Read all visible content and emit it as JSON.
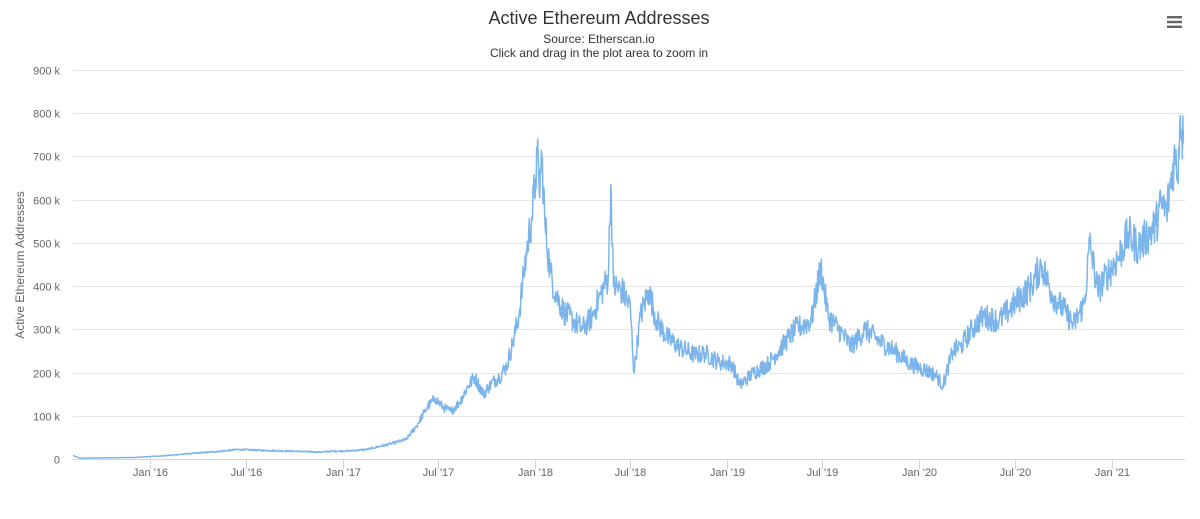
{
  "chart_data": {
    "type": "line",
    "title": "Active Ethereum Addresses",
    "subtitles": [
      "Source: Etherscan.io",
      "Click and drag in the plot area to zoom in"
    ],
    "ylabel": "Active Ethereum Addresses",
    "xlabel": "",
    "ylim": [
      0,
      900000
    ],
    "y_ticks": [
      {
        "value": 0,
        "label": "0"
      },
      {
        "value": 100000,
        "label": "100 k"
      },
      {
        "value": 200000,
        "label": "200 k"
      },
      {
        "value": 300000,
        "label": "300 k"
      },
      {
        "value": 400000,
        "label": "400 k"
      },
      {
        "value": 500000,
        "label": "500 k"
      },
      {
        "value": 600000,
        "label": "600 k"
      },
      {
        "value": 700000,
        "label": "700 k"
      },
      {
        "value": 800000,
        "label": "800 k"
      },
      {
        "value": 900000,
        "label": "900 k"
      }
    ],
    "xlim": [
      "2015-08-07",
      "2021-05-20"
    ],
    "x_ticks": [
      {
        "date": "2016-01-01",
        "label": "Jan '16"
      },
      {
        "date": "2016-07-01",
        "label": "Jul '16"
      },
      {
        "date": "2017-01-01",
        "label": "Jan '17"
      },
      {
        "date": "2017-07-01",
        "label": "Jul '17"
      },
      {
        "date": "2018-01-01",
        "label": "Jan '18"
      },
      {
        "date": "2018-07-01",
        "label": "Jul '18"
      },
      {
        "date": "2019-01-01",
        "label": "Jan '19"
      },
      {
        "date": "2019-07-01",
        "label": "Jul '19"
      },
      {
        "date": "2020-01-01",
        "label": "Jan '20"
      },
      {
        "date": "2020-07-01",
        "label": "Jul '20"
      },
      {
        "date": "2021-01-01",
        "label": "Jan '21"
      }
    ],
    "grid": true,
    "legend": "none",
    "colors": {
      "line": "#7cb5ec",
      "grid": "#e6e6e6",
      "axis": "#ccd6eb",
      "text": "#333333",
      "tick_text": "#666666"
    },
    "series": [
      {
        "points": [
          [
            "2015-08-07",
            8000
          ],
          [
            "2015-08-20",
            2000
          ],
          [
            "2015-10-01",
            2500
          ],
          [
            "2015-12-01",
            3500
          ],
          [
            "2016-02-01",
            8000
          ],
          [
            "2016-04-01",
            14000
          ],
          [
            "2016-05-15",
            18000
          ],
          [
            "2016-06-15",
            22000
          ],
          [
            "2016-08-01",
            20000
          ],
          [
            "2016-10-01",
            18000
          ],
          [
            "2016-11-15",
            16000
          ],
          [
            "2016-12-15",
            18000
          ],
          [
            "2017-01-15",
            19000
          ],
          [
            "2017-02-15",
            22000
          ],
          [
            "2017-03-15",
            30000
          ],
          [
            "2017-04-01",
            35000
          ],
          [
            "2017-05-01",
            45000
          ],
          [
            "2017-05-20",
            75000
          ],
          [
            "2017-06-10",
            120000
          ],
          [
            "2017-06-25",
            140000
          ],
          [
            "2017-07-10",
            120000
          ],
          [
            "2017-07-25",
            110000
          ],
          [
            "2017-08-10",
            130000
          ],
          [
            "2017-08-25",
            165000
          ],
          [
            "2017-09-08",
            190000
          ],
          [
            "2017-09-25",
            150000
          ],
          [
            "2017-10-10",
            175000
          ],
          [
            "2017-10-25",
            190000
          ],
          [
            "2017-11-08",
            215000
          ],
          [
            "2017-11-20",
            270000
          ],
          [
            "2017-12-01",
            330000
          ],
          [
            "2017-12-10",
            420000
          ],
          [
            "2017-12-18",
            500000
          ],
          [
            "2017-12-26",
            560000
          ],
          [
            "2018-01-02",
            650000
          ],
          [
            "2018-01-05",
            705000
          ],
          [
            "2018-01-09",
            620000
          ],
          [
            "2018-01-14",
            700000
          ],
          [
            "2018-01-20",
            540000
          ],
          [
            "2018-01-30",
            430000
          ],
          [
            "2018-02-10",
            380000
          ],
          [
            "2018-02-25",
            340000
          ],
          [
            "2018-03-15",
            320000
          ],
          [
            "2018-04-01",
            300000
          ],
          [
            "2018-04-20",
            330000
          ],
          [
            "2018-05-05",
            380000
          ],
          [
            "2018-05-20",
            420000
          ],
          [
            "2018-05-25",
            635000
          ],
          [
            "2018-05-30",
            400000
          ],
          [
            "2018-06-15",
            390000
          ],
          [
            "2018-07-01",
            350000
          ],
          [
            "2018-07-08",
            200000
          ],
          [
            "2018-07-20",
            330000
          ],
          [
            "2018-08-05",
            390000
          ],
          [
            "2018-08-20",
            320000
          ],
          [
            "2018-09-10",
            280000
          ],
          [
            "2018-10-01",
            260000
          ],
          [
            "2018-11-01",
            240000
          ],
          [
            "2018-11-20",
            245000
          ],
          [
            "2018-12-15",
            225000
          ],
          [
            "2019-01-10",
            220000
          ],
          [
            "2019-01-25",
            170000
          ],
          [
            "2019-02-20",
            200000
          ],
          [
            "2019-03-20",
            220000
          ],
          [
            "2019-04-15",
            260000
          ],
          [
            "2019-05-10",
            300000
          ],
          [
            "2019-06-10",
            320000
          ],
          [
            "2019-06-28",
            445000
          ],
          [
            "2019-07-12",
            330000
          ],
          [
            "2019-08-01",
            300000
          ],
          [
            "2019-08-25",
            260000
          ],
          [
            "2019-09-20",
            300000
          ],
          [
            "2019-10-20",
            270000
          ],
          [
            "2019-11-15",
            250000
          ],
          [
            "2019-12-15",
            220000
          ],
          [
            "2020-01-05",
            210000
          ],
          [
            "2020-02-01",
            195000
          ],
          [
            "2020-02-15",
            170000
          ],
          [
            "2020-03-05",
            250000
          ],
          [
            "2020-03-20",
            260000
          ],
          [
            "2020-04-10",
            300000
          ],
          [
            "2020-05-01",
            330000
          ],
          [
            "2020-06-01",
            320000
          ],
          [
            "2020-07-01",
            360000
          ],
          [
            "2020-08-01",
            400000
          ],
          [
            "2020-08-20",
            450000
          ],
          [
            "2020-09-10",
            380000
          ],
          [
            "2020-10-05",
            340000
          ],
          [
            "2020-10-20",
            310000
          ],
          [
            "2020-11-10",
            360000
          ],
          [
            "2020-11-20",
            500000
          ],
          [
            "2020-12-05",
            390000
          ],
          [
            "2020-12-25",
            430000
          ],
          [
            "2021-01-15",
            470000
          ],
          [
            "2021-02-01",
            520000
          ],
          [
            "2021-02-20",
            490000
          ],
          [
            "2021-03-05",
            510000
          ],
          [
            "2021-03-25",
            540000
          ],
          [
            "2021-04-05",
            590000
          ],
          [
            "2021-04-15",
            570000
          ],
          [
            "2021-04-25",
            660000
          ],
          [
            "2021-05-01",
            700000
          ],
          [
            "2021-05-06",
            660000
          ],
          [
            "2021-05-11",
            795000
          ],
          [
            "2021-05-14",
            760000
          ],
          [
            "2021-05-17",
            730000
          ]
        ]
      }
    ]
  },
  "menu": {
    "icon": "hamburger-menu-icon"
  }
}
